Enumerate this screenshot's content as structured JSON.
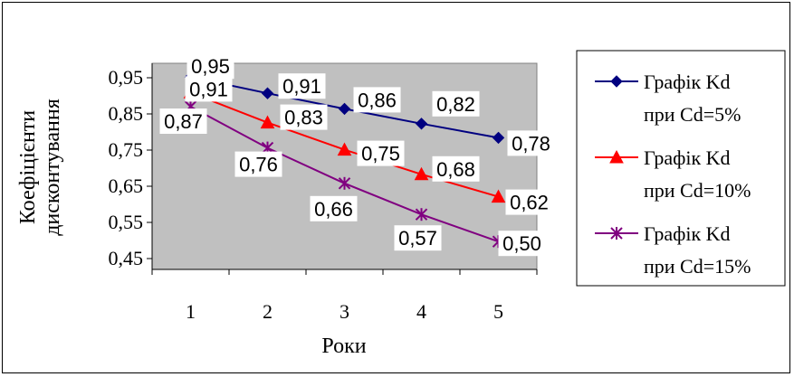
{
  "chart_data": {
    "type": "line",
    "title": "",
    "xlabel": "Роки",
    "ylabel_lines": [
      "Коефіцієнти",
      "дисконтування"
    ],
    "categories": [
      "1",
      "2",
      "3",
      "4",
      "5"
    ],
    "yticks": [
      "0,45",
      "0,55",
      "0,65",
      "0,75",
      "0,85",
      "0,95"
    ],
    "ytick_values": [
      0.45,
      0.55,
      0.65,
      0.75,
      0.85,
      0.95
    ],
    "ylim": [
      0.45,
      0.95
    ],
    "grid": false,
    "legend_position": "right",
    "plot_background": "#c0c0c0",
    "series": [
      {
        "name_lines": [
          "Графік Kd",
          "при Cd=5%"
        ],
        "values": [
          0.952,
          0.907,
          0.864,
          0.823,
          0.784
        ],
        "labels": [
          "0,95",
          "0,91",
          "0,86",
          "0,82",
          "0,78"
        ],
        "color": "#000080",
        "marker": "diamond"
      },
      {
        "name_lines": [
          "Графік Kd",
          "при Cd=10%"
        ],
        "values": [
          0.909,
          0.826,
          0.751,
          0.683,
          0.621
        ],
        "labels": [
          "0,91",
          "0,83",
          "0,75",
          "0,68",
          "0,62"
        ],
        "color": "#ff0000",
        "marker": "triangle"
      },
      {
        "name_lines": [
          "Графік Kd",
          "при Cd=15%"
        ],
        "values": [
          0.87,
          0.756,
          0.658,
          0.572,
          0.497
        ],
        "labels": [
          "0,87",
          "0,76",
          "0,66",
          "0,57",
          "0,50"
        ],
        "color": "#800080",
        "marker": "star"
      }
    ]
  }
}
